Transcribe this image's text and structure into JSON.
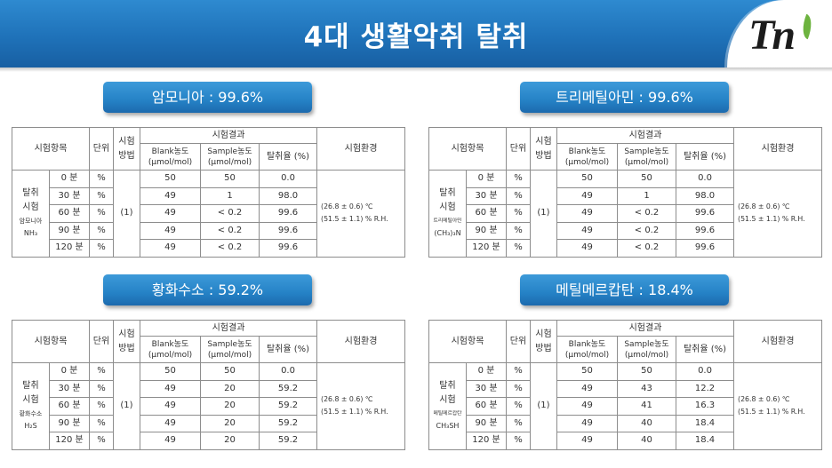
{
  "header": {
    "title": "4대 생활악취 탈취",
    "logo_text": "Tn",
    "logo_icon": "leaf-icon"
  },
  "colors": {
    "banner": "#1f72b9",
    "pill": "#2582c6",
    "leaf": "#6db33f",
    "line": "#8d8d8d"
  },
  "table_headers": {
    "test_item": "시험항목",
    "unit": "단위",
    "method": [
      "시험",
      "방법"
    ],
    "results": "시험결과",
    "blank": [
      "Blank농도",
      "(μmol/mol)"
    ],
    "sample": [
      "Sample농도",
      "(μmol/mol)"
    ],
    "rate": "탈취율 (%)",
    "environment": "시험환경"
  },
  "sections": [
    {
      "label": "암모니아 : 99.6%",
      "test": [
        "탈취",
        "시험"
      ],
      "gas_name": "암모니아",
      "formula": "NH₃",
      "method": "(1)",
      "environment": [
        "(26.8 ± 0.6) ℃",
        "(51.5 ± 1.1) % R.H."
      ],
      "rows": [
        {
          "time": "0 분",
          "unit": "%",
          "blank": "50",
          "sample": "50",
          "rate": "0.0"
        },
        {
          "time": "30 분",
          "unit": "%",
          "blank": "49",
          "sample": "1",
          "rate": "98.0"
        },
        {
          "time": "60 분",
          "unit": "%",
          "blank": "49",
          "sample": "< 0.2",
          "rate": "99.6"
        },
        {
          "time": "90 분",
          "unit": "%",
          "blank": "49",
          "sample": "< 0.2",
          "rate": "99.6"
        },
        {
          "time": "120 분",
          "unit": "%",
          "blank": "49",
          "sample": "< 0.2",
          "rate": "99.6"
        }
      ]
    },
    {
      "label": "트리메틸아민 : 99.6%",
      "test": [
        "탈취",
        "시험"
      ],
      "gas_name": "트리메틸아민",
      "formula": "(CH₃)₃N",
      "method": "(1)",
      "environment": [
        "(26.8 ± 0.6) ℃",
        "(51.5 ± 1.1) % R.H."
      ],
      "rows": [
        {
          "time": "0 분",
          "unit": "%",
          "blank": "50",
          "sample": "50",
          "rate": "0.0"
        },
        {
          "time": "30 분",
          "unit": "%",
          "blank": "49",
          "sample": "1",
          "rate": "98.0"
        },
        {
          "time": "60 분",
          "unit": "%",
          "blank": "49",
          "sample": "< 0.2",
          "rate": "99.6"
        },
        {
          "time": "90 분",
          "unit": "%",
          "blank": "49",
          "sample": "< 0.2",
          "rate": "99.6"
        },
        {
          "time": "120 분",
          "unit": "%",
          "blank": "49",
          "sample": "< 0.2",
          "rate": "99.6"
        }
      ]
    },
    {
      "label": "황화수소 : 59.2%",
      "test": [
        "탈취",
        "시험"
      ],
      "gas_name": "황화수소",
      "formula": "H₂S",
      "method": "(1)",
      "environment": [
        "(26.8 ± 0.6) ℃",
        "(51.5 ± 1.1) % R.H."
      ],
      "rows": [
        {
          "time": "0 분",
          "unit": "%",
          "blank": "50",
          "sample": "50",
          "rate": "0.0"
        },
        {
          "time": "30 분",
          "unit": "%",
          "blank": "49",
          "sample": "20",
          "rate": "59.2"
        },
        {
          "time": "60 분",
          "unit": "%",
          "blank": "49",
          "sample": "20",
          "rate": "59.2"
        },
        {
          "time": "90 분",
          "unit": "%",
          "blank": "49",
          "sample": "20",
          "rate": "59.2"
        },
        {
          "time": "120 분",
          "unit": "%",
          "blank": "49",
          "sample": "20",
          "rate": "59.2"
        }
      ]
    },
    {
      "label": "메틸메르캅탄 : 18.4%",
      "test": [
        "탈취",
        "시험"
      ],
      "gas_name": "메틸메르캅탄",
      "formula": "CH₃SH",
      "method": "(1)",
      "environment": [
        "(26.8 ± 0.6) ℃",
        "(51.5 ± 1.1) % R.H."
      ],
      "rows": [
        {
          "time": "0 분",
          "unit": "%",
          "blank": "50",
          "sample": "50",
          "rate": "0.0"
        },
        {
          "time": "30 분",
          "unit": "%",
          "blank": "49",
          "sample": "43",
          "rate": "12.2"
        },
        {
          "time": "60 분",
          "unit": "%",
          "blank": "49",
          "sample": "41",
          "rate": "16.3"
        },
        {
          "time": "90 분",
          "unit": "%",
          "blank": "49",
          "sample": "40",
          "rate": "18.4"
        },
        {
          "time": "120 분",
          "unit": "%",
          "blank": "49",
          "sample": "40",
          "rate": "18.4"
        }
      ]
    }
  ]
}
